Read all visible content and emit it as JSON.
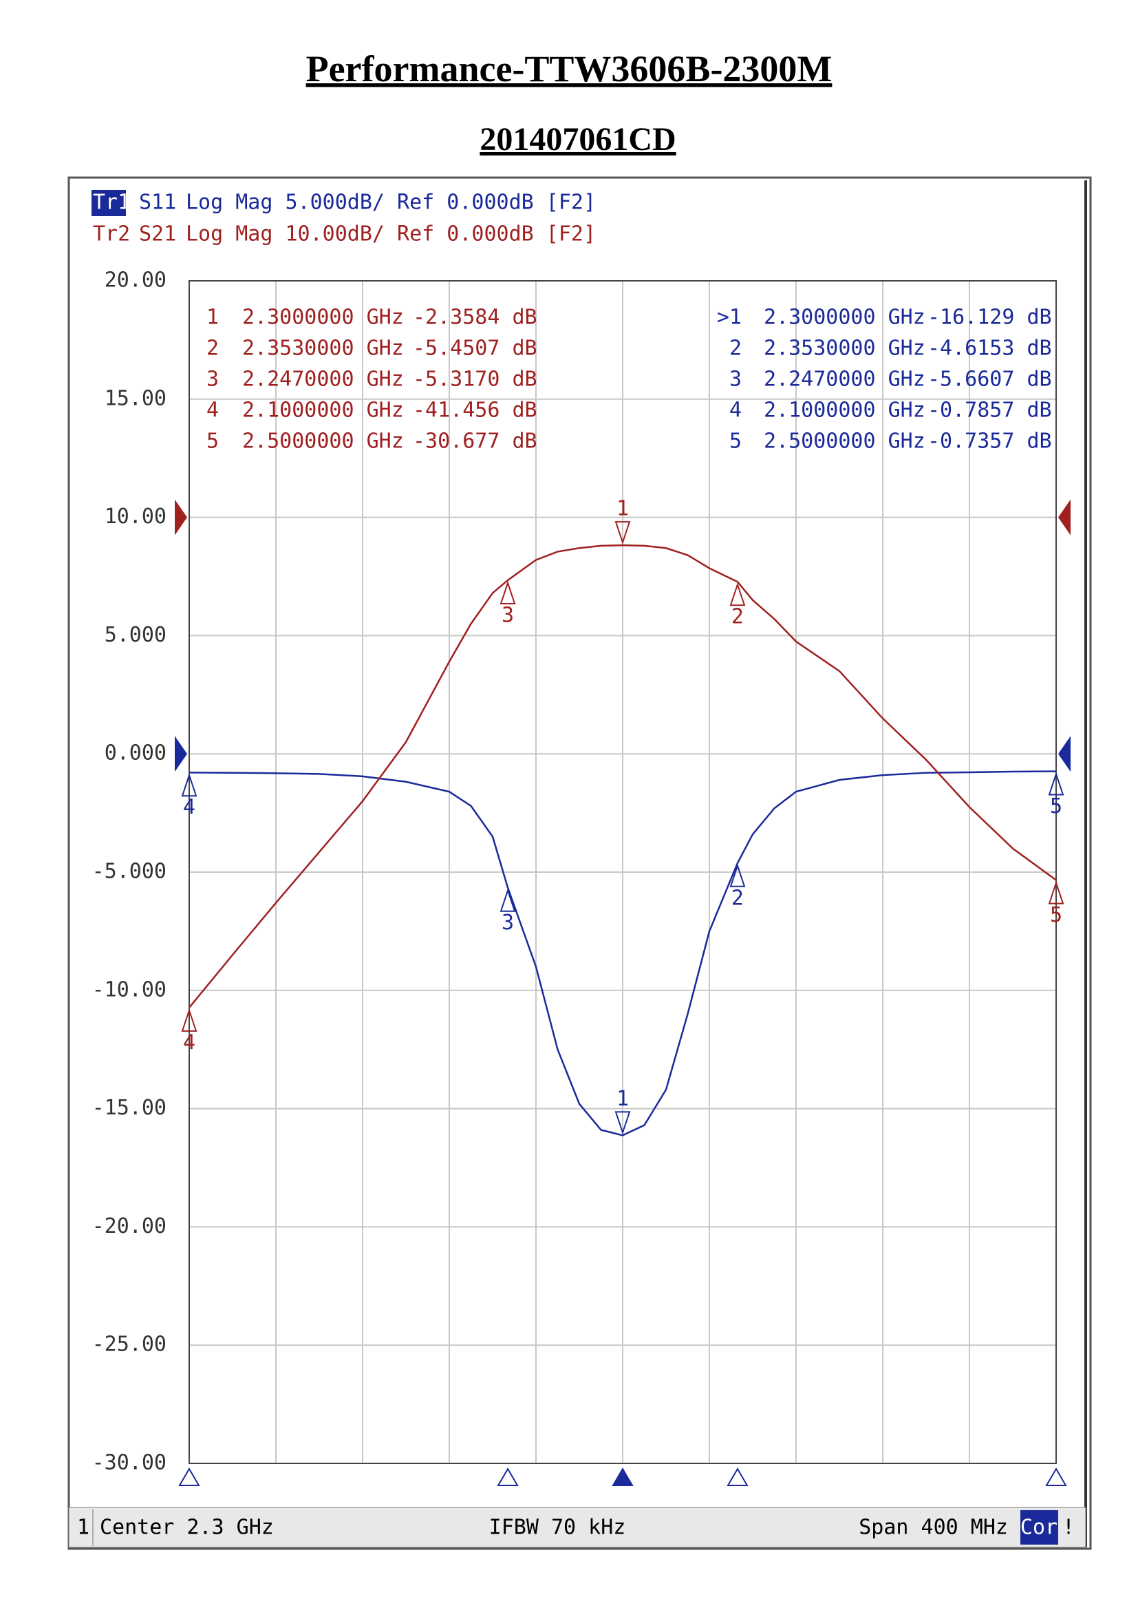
{
  "chart_data": {
    "type": "line",
    "title": "Performance-TTW3606B-2300M",
    "subtitle": "201407061CD",
    "xlim": [
      2.1,
      2.5
    ],
    "ylim": [
      -30,
      20
    ],
    "y2lim": [
      -80,
      20
    ],
    "yticks": [
      {
        "value": 20,
        "label": "20.00"
      },
      {
        "value": 15,
        "label": "15.00"
      },
      {
        "value": 10,
        "label": "10.00"
      },
      {
        "value": 5,
        "label": "5.000"
      },
      {
        "value": 0,
        "label": "0.000"
      },
      {
        "value": -5,
        "label": "-5.000"
      },
      {
        "value": -10,
        "label": "-10.00"
      },
      {
        "value": -15,
        "label": "-15.00"
      },
      {
        "value": -20,
        "label": "-20.00"
      },
      {
        "value": -25,
        "label": "-25.00"
      },
      {
        "value": -30,
        "label": "-30.00"
      }
    ],
    "grid": true,
    "x": [
      2.1,
      2.12,
      2.14,
      2.16,
      2.18,
      2.2,
      2.22,
      2.23,
      2.24,
      2.247,
      2.26,
      2.27,
      2.28,
      2.29,
      2.3,
      2.31,
      2.32,
      2.33,
      2.34,
      2.353,
      2.36,
      2.37,
      2.38,
      2.4,
      2.42,
      2.44,
      2.46,
      2.48,
      2.5
    ],
    "series": [
      {
        "name": "S11",
        "trace": "Tr1",
        "format": "Log Mag 5.000dB/ Ref 0.000dB [F2]",
        "color": "#1a2a9a",
        "axis": "y",
        "values": [
          -0.79,
          -0.8,
          -0.82,
          -0.85,
          -0.95,
          -1.18,
          -1.6,
          -2.2,
          -3.5,
          -5.66,
          -9,
          -12.5,
          -14.8,
          -15.9,
          -16.13,
          -15.7,
          -14.2,
          -11,
          -7.5,
          -4.62,
          -3.4,
          -2.3,
          -1.6,
          -1.1,
          -0.9,
          -0.8,
          -0.78,
          -0.75,
          -0.74
        ],
        "markers": {
          "ids": [
            ">1",
            "2",
            "3",
            "4",
            "5"
          ],
          "x": [
            2.3,
            2.353,
            2.247,
            2.1,
            2.5
          ],
          "x_labels": [
            "2.3000000 GHz",
            "2.3530000 GHz",
            "2.2470000 GHz",
            "2.1000000 GHz",
            "2.5000000 GHz"
          ],
          "values": [
            -16.129,
            -4.6153,
            -5.6607,
            -0.7857,
            -0.7357
          ],
          "value_labels": [
            "-16.129 dB",
            "-4.6153 dB",
            "-5.6607 dB",
            "-0.7857 dB",
            "-0.7357 dB"
          ]
        }
      },
      {
        "name": "S21",
        "trace": "Tr2",
        "format": "Log Mag 10.00dB/ Ref 0.000dB [F2]",
        "color": "#a02020",
        "axis": "y2",
        "values": [
          -41.456,
          -37,
          -32.6,
          -28.3,
          -24,
          -19,
          -12.2,
          -9,
          -6.4,
          -5.317,
          -3.6,
          -2.9,
          -2.6,
          -2.4,
          -2.358,
          -2.4,
          -2.6,
          -3.2,
          -4.3,
          -5.451,
          -7,
          -8.6,
          -10.5,
          -13,
          -17,
          -20.5,
          -24.5,
          -28,
          -30.677
        ],
        "markers": {
          "ids": [
            "1",
            "2",
            "3",
            "4",
            "5"
          ],
          "x": [
            2.3,
            2.353,
            2.247,
            2.1,
            2.5
          ],
          "x_labels": [
            "2.3000000 GHz",
            "2.3530000 GHz",
            "2.2470000 GHz",
            "2.1000000 GHz",
            "2.5000000 GHz"
          ],
          "values": [
            -2.3584,
            -5.4507,
            -5.317,
            -41.456,
            -30.677
          ],
          "value_labels": [
            "-2.3584 dB",
            "-5.4507 dB",
            "-5.3170 dB",
            "-41.456 dB",
            "-30.677 dB"
          ]
        }
      }
    ],
    "footer": {
      "channel": "1",
      "center": "Center 2.3 GHz",
      "ifbw": "IFBW 70 kHz",
      "span": "Span 400 MHz",
      "cor": "Cor",
      "flag": "!"
    }
  }
}
